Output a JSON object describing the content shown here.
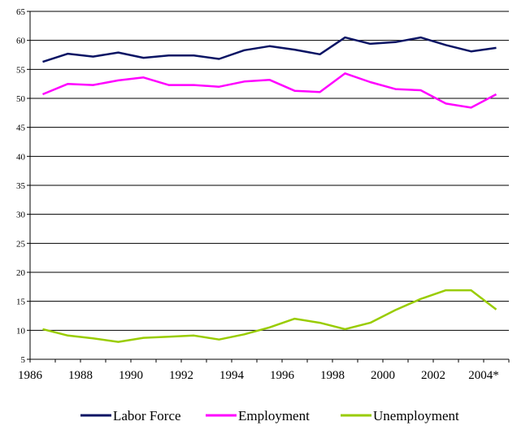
{
  "chart_data": {
    "type": "line",
    "x": [
      "1986",
      "1987",
      "1988",
      "1989",
      "1990",
      "1991",
      "1992",
      "1993",
      "1994",
      "1995",
      "1996",
      "1997",
      "1998",
      "1999",
      "2000",
      "2001",
      "2002",
      "2003",
      "2004*"
    ],
    "x_tick_labels": [
      "1986",
      "1988",
      "1990",
      "1992",
      "1994",
      "1996",
      "1998",
      "2000",
      "2002",
      "2004*"
    ],
    "ylim": [
      5,
      65
    ],
    "y_ticks": [
      5,
      10,
      15,
      20,
      25,
      30,
      35,
      40,
      45,
      50,
      55,
      60,
      65
    ],
    "grid": "horizontal",
    "legend_position": "bottom",
    "series": [
      {
        "name": "Labor Force",
        "color": "#0a1464",
        "values": [
          56.3,
          57.7,
          57.2,
          57.9,
          57.0,
          57.4,
          57.4,
          56.8,
          58.3,
          59.0,
          58.4,
          57.6,
          60.5,
          59.4,
          59.7,
          60.5,
          59.2,
          58.1,
          58.7
        ]
      },
      {
        "name": "Employment",
        "color": "#ff00ff",
        "values": [
          50.7,
          52.5,
          52.3,
          53.1,
          53.6,
          52.3,
          52.3,
          52.0,
          52.9,
          53.2,
          51.3,
          51.1,
          54.3,
          52.8,
          51.6,
          51.4,
          49.1,
          48.4,
          50.7
        ]
      },
      {
        "name": "Unemployment",
        "color": "#99cc00",
        "values": [
          10.2,
          9.1,
          8.6,
          8.0,
          8.7,
          8.9,
          9.1,
          8.4,
          9.3,
          10.5,
          12.0,
          11.3,
          10.2,
          11.3,
          13.5,
          15.4,
          16.9,
          16.9,
          13.6
        ]
      }
    ]
  }
}
